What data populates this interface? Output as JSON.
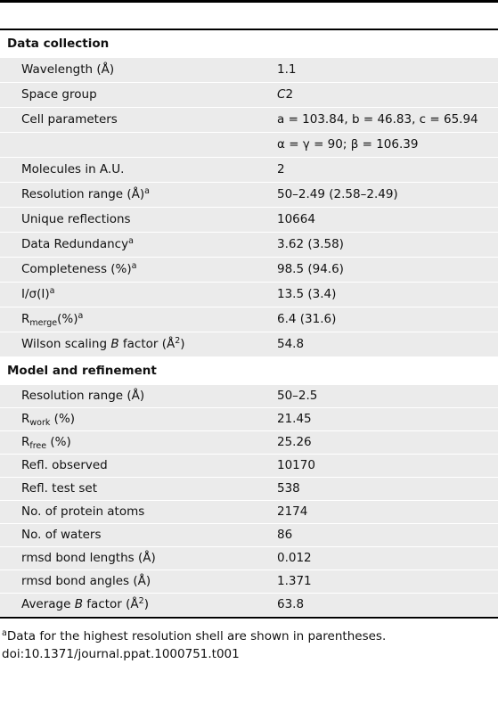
{
  "table": {
    "sections": [
      {
        "title": "Data collection",
        "rows": [
          {
            "label": [
              {
                "text": "Wavelength (Å)",
                "style": "normal"
              }
            ],
            "value": [
              {
                "text": "1.1",
                "style": "normal"
              }
            ]
          },
          {
            "label": [
              {
                "text": "Space group",
                "style": "normal"
              }
            ],
            "value": [
              {
                "text": "C",
                "style": "italic"
              },
              {
                "text": "2",
                "style": "normal"
              }
            ]
          },
          {
            "label": [
              {
                "text": "Cell parameters",
                "style": "normal"
              }
            ],
            "value": [
              {
                "text": "a = 103.84, b = 46.83, c = 65.94",
                "style": "normal"
              }
            ]
          },
          {
            "label": [],
            "value": [
              {
                "text": "α = γ = 90; β = 106.39",
                "style": "normal"
              }
            ]
          },
          {
            "label": [
              {
                "text": "Molecules in A.U.",
                "style": "normal"
              }
            ],
            "value": [
              {
                "text": "2",
                "style": "normal"
              }
            ]
          },
          {
            "label": [
              {
                "text": "Resolution range (Å)",
                "style": "normal"
              },
              {
                "text": "a",
                "style": "sup"
              }
            ],
            "value": [
              {
                "text": "50–2.49 (2.58–2.49)",
                "style": "normal"
              }
            ]
          },
          {
            "label": [
              {
                "text": "Unique reflections",
                "style": "normal"
              }
            ],
            "value": [
              {
                "text": "10664",
                "style": "normal"
              }
            ]
          },
          {
            "label": [
              {
                "text": "Data Redundancy",
                "style": "normal"
              },
              {
                "text": "a",
                "style": "sup"
              }
            ],
            "value": [
              {
                "text": "3.62 (3.58)",
                "style": "normal"
              }
            ]
          },
          {
            "label": [
              {
                "text": "Completeness (%)",
                "style": "normal"
              },
              {
                "text": "a",
                "style": "sup"
              }
            ],
            "value": [
              {
                "text": "98.5 (94.6)",
                "style": "normal"
              }
            ]
          },
          {
            "label": [
              {
                "text": "I/σ(I)",
                "style": "normal"
              },
              {
                "text": "a",
                "style": "sup"
              }
            ],
            "value": [
              {
                "text": "13.5 (3.4)",
                "style": "normal"
              }
            ]
          },
          {
            "label": [
              {
                "text": "R",
                "style": "normal"
              },
              {
                "text": "merge",
                "style": "sub"
              },
              {
                "text": "(%)",
                "style": "normal"
              },
              {
                "text": "a",
                "style": "sup"
              }
            ],
            "value": [
              {
                "text": "6.4 (31.6)",
                "style": "normal"
              }
            ]
          },
          {
            "label": [
              {
                "text": "Wilson scaling ",
                "style": "normal"
              },
              {
                "text": "B",
                "style": "italic"
              },
              {
                "text": " factor (Å",
                "style": "normal"
              },
              {
                "text": "2",
                "style": "sup"
              },
              {
                "text": ")",
                "style": "normal"
              }
            ],
            "value": [
              {
                "text": "54.8",
                "style": "normal"
              }
            ]
          }
        ]
      },
      {
        "title": "Model and refinement",
        "rows": [
          {
            "label": [
              {
                "text": "Resolution range (Å)",
                "style": "normal"
              }
            ],
            "value": [
              {
                "text": "50–2.5",
                "style": "normal"
              }
            ]
          },
          {
            "label": [
              {
                "text": "R",
                "style": "normal"
              },
              {
                "text": "work",
                "style": "sub"
              },
              {
                "text": " (%)",
                "style": "normal"
              }
            ],
            "value": [
              {
                "text": "21.45",
                "style": "normal"
              }
            ]
          },
          {
            "label": [
              {
                "text": "R",
                "style": "normal"
              },
              {
                "text": "free",
                "style": "sub"
              },
              {
                "text": " (%)",
                "style": "normal"
              }
            ],
            "value": [
              {
                "text": "25.26",
                "style": "normal"
              }
            ]
          },
          {
            "label": [
              {
                "text": "Refl. observed",
                "style": "normal"
              }
            ],
            "value": [
              {
                "text": "10170",
                "style": "normal"
              }
            ]
          },
          {
            "label": [
              {
                "text": "Refl. test set",
                "style": "normal"
              }
            ],
            "value": [
              {
                "text": "538",
                "style": "normal"
              }
            ]
          },
          {
            "label": [
              {
                "text": "No. of protein atoms",
                "style": "normal"
              }
            ],
            "value": [
              {
                "text": "2174",
                "style": "normal"
              }
            ]
          },
          {
            "label": [
              {
                "text": "No. of waters",
                "style": "normal"
              }
            ],
            "value": [
              {
                "text": "86",
                "style": "normal"
              }
            ]
          },
          {
            "label": [
              {
                "text": "rmsd bond lengths (Å)",
                "style": "normal"
              }
            ],
            "value": [
              {
                "text": "0.012",
                "style": "normal"
              }
            ]
          },
          {
            "label": [
              {
                "text": "rmsd bond angles (Å)",
                "style": "normal"
              }
            ],
            "value": [
              {
                "text": "1.371",
                "style": "normal"
              }
            ]
          },
          {
            "label": [
              {
                "text": "Average ",
                "style": "normal"
              },
              {
                "text": "B",
                "style": "italic"
              },
              {
                "text": " factor (Å",
                "style": "normal"
              },
              {
                "text": "2",
                "style": "sup"
              },
              {
                "text": ")",
                "style": "normal"
              }
            ],
            "value": [
              {
                "text": "63.8",
                "style": "normal"
              }
            ]
          }
        ]
      }
    ]
  },
  "footnote": [
    {
      "text": "a",
      "style": "sup"
    },
    {
      "text": "Data for the highest resolution shell are shown in parentheses.",
      "style": "normal"
    }
  ],
  "doi": "doi:10.1371/journal.ppat.1000751.t001"
}
